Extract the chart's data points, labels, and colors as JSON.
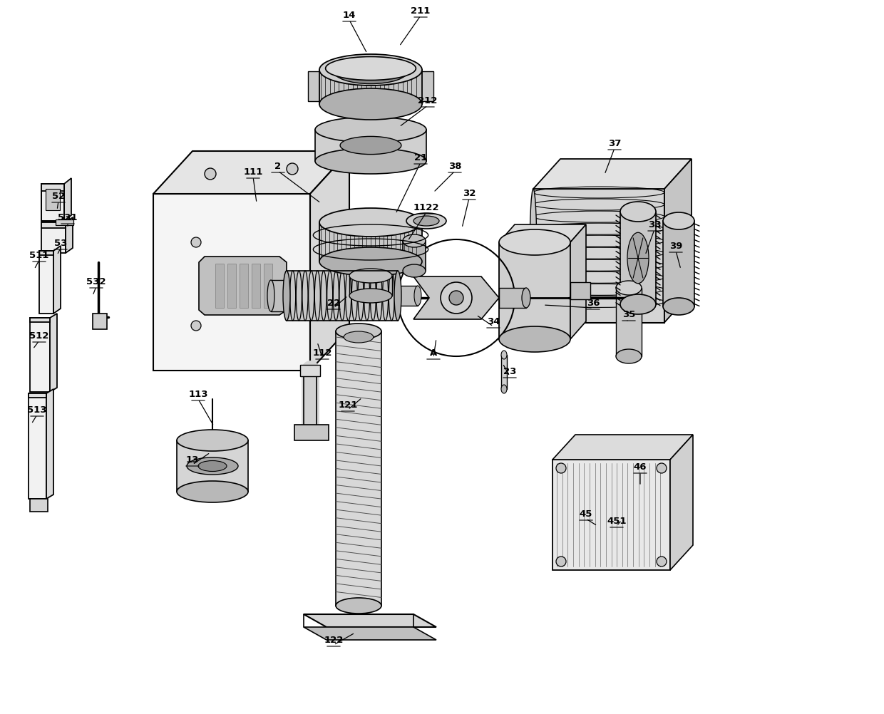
{
  "bg_color": "#ffffff",
  "line_color": "#000000",
  "fig_w": 12.4,
  "fig_h": 10.02,
  "labels": [
    [
      "14",
      490,
      28,
      515,
      75
    ],
    [
      "211",
      590,
      22,
      560,
      65
    ],
    [
      "212",
      600,
      148,
      560,
      178
    ],
    [
      "2",
      390,
      240,
      450,
      285
    ],
    [
      "21",
      590,
      228,
      555,
      300
    ],
    [
      "38",
      638,
      240,
      608,
      270
    ],
    [
      "1122",
      598,
      298,
      572,
      338
    ],
    [
      "32",
      658,
      278,
      648,
      320
    ],
    [
      "111",
      355,
      248,
      360,
      285
    ],
    [
      "22",
      468,
      432,
      488,
      415
    ],
    [
      "112",
      452,
      502,
      445,
      480
    ],
    [
      "113",
      278,
      560,
      300,
      598
    ],
    [
      "13",
      270,
      652,
      295,
      635
    ],
    [
      "121",
      488,
      575,
      508,
      558
    ],
    [
      "122",
      468,
      905,
      498,
      888
    ],
    [
      "52",
      82,
      282,
      80,
      295
    ],
    [
      "531",
      95,
      312,
      95,
      320
    ],
    [
      "53",
      85,
      348,
      80,
      358
    ],
    [
      "511",
      55,
      365,
      48,
      378
    ],
    [
      "532",
      135,
      402,
      130,
      415
    ],
    [
      "512",
      55,
      478,
      46,
      490
    ],
    [
      "513",
      52,
      582,
      44,
      595
    ],
    [
      "37",
      862,
      208,
      848,
      245
    ],
    [
      "33",
      918,
      322,
      905,
      358
    ],
    [
      "39",
      948,
      352,
      955,
      378
    ],
    [
      "36",
      832,
      432,
      762,
      428
    ],
    [
      "35",
      882,
      448,
      878,
      452
    ],
    [
      "34",
      692,
      458,
      668,
      442
    ],
    [
      "A",
      608,
      502,
      612,
      475
    ],
    [
      "23",
      715,
      528,
      705,
      510
    ],
    [
      "45",
      822,
      728,
      838,
      738
    ],
    [
      "451",
      865,
      738,
      872,
      730
    ],
    [
      "46",
      898,
      662,
      898,
      682
    ]
  ]
}
